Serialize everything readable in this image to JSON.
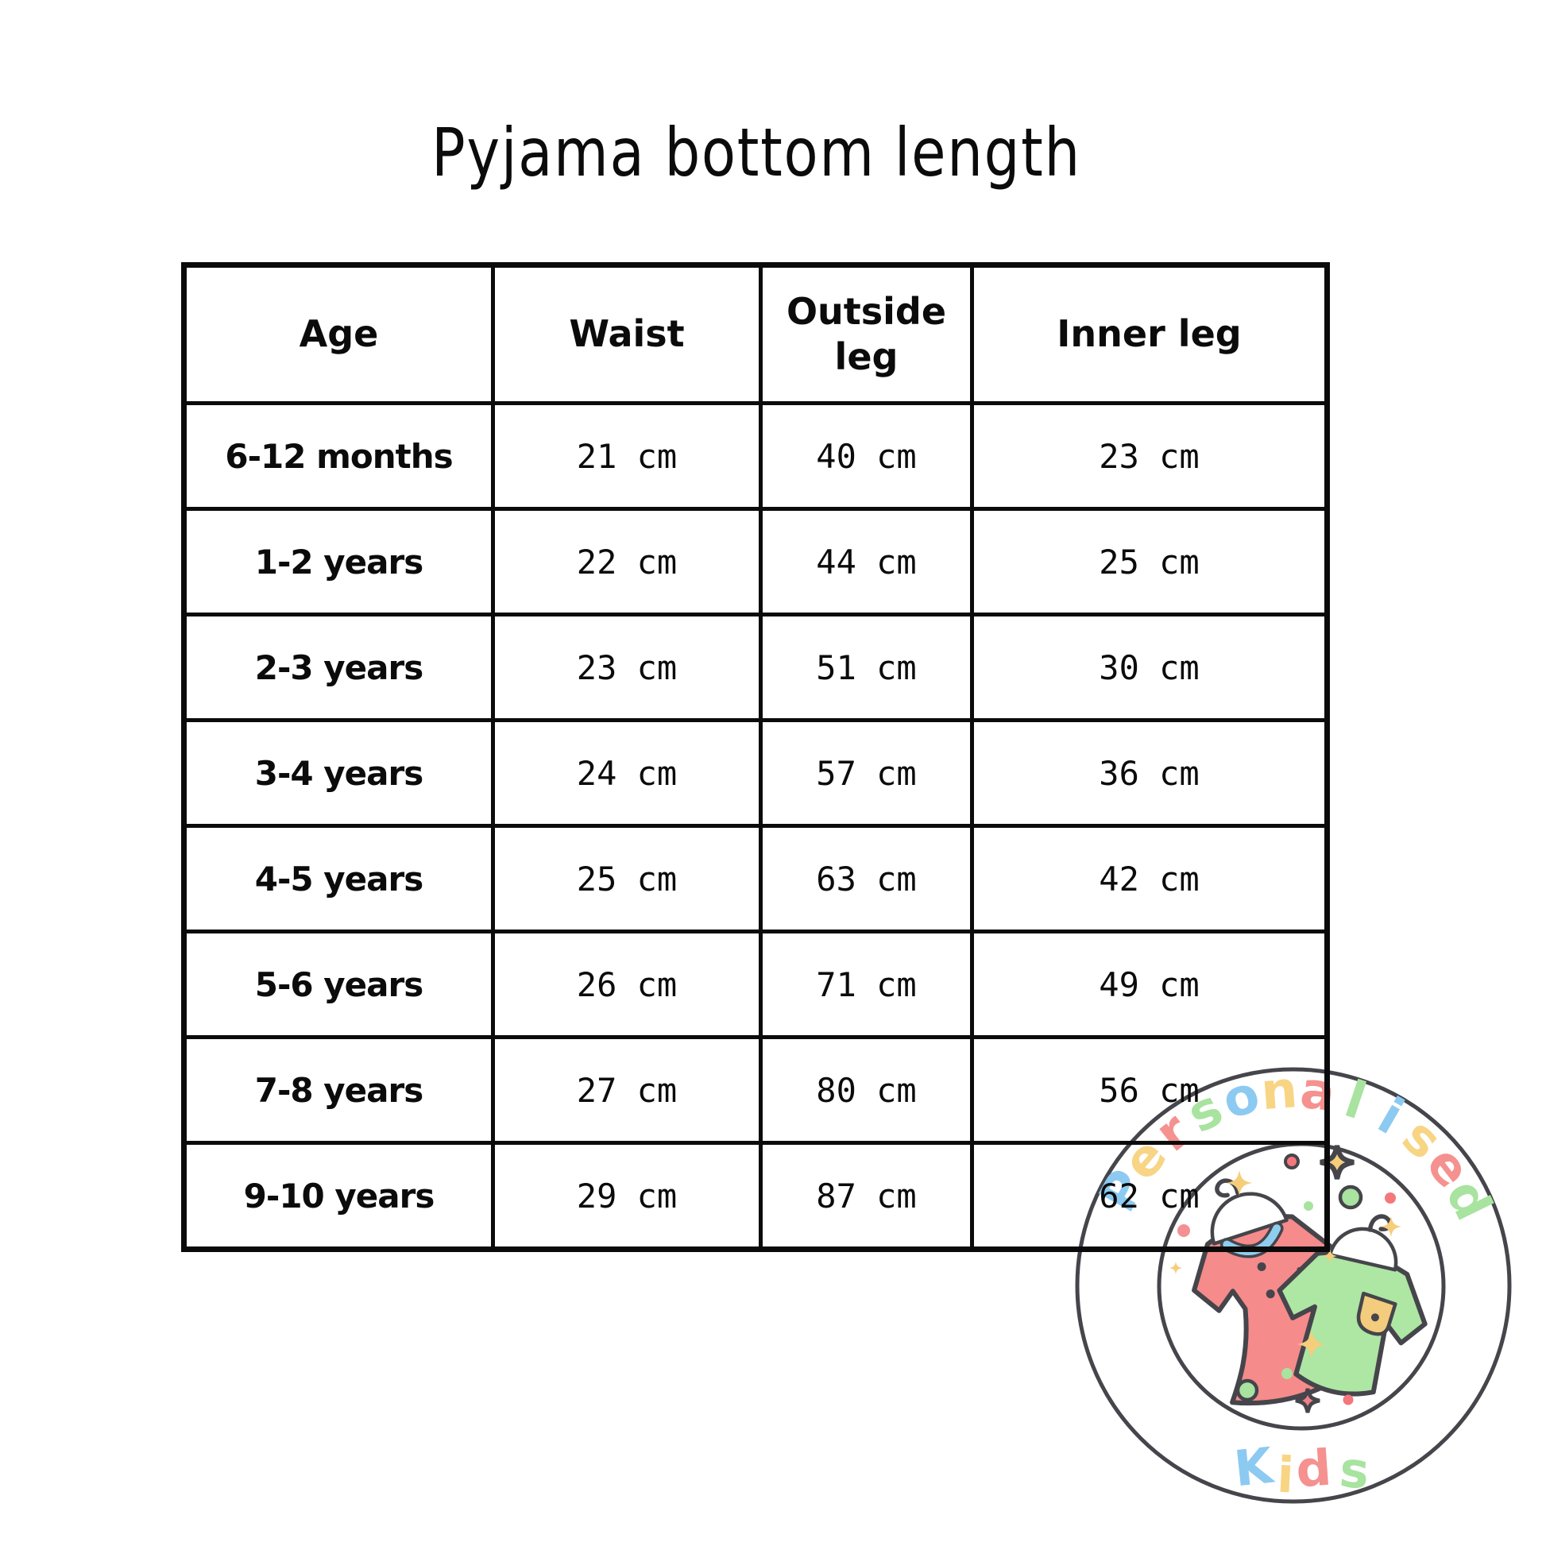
{
  "title": "Pyjama bottom length",
  "colors": {
    "text": "#0b0b0b",
    "border": "#0b0b0b",
    "background": "#ffffff"
  },
  "table": {
    "columns": [
      "Age",
      "Waist",
      "Outside leg",
      "Inner leg"
    ],
    "rows": [
      {
        "age": "6-12 months",
        "waist": "21 cm",
        "outside": "40 cm",
        "inner": "23 cm"
      },
      {
        "age": "1-2 years",
        "waist": "22 cm",
        "outside": "44 cm",
        "inner": "25 cm"
      },
      {
        "age": "2-3 years",
        "waist": "23 cm",
        "outside": "51 cm",
        "inner": "30 cm"
      },
      {
        "age": "3-4 years",
        "waist": "24 cm",
        "outside": "57 cm",
        "inner": "36 cm"
      },
      {
        "age": "4-5 years",
        "waist": "25 cm",
        "outside": "63 cm",
        "inner": "42 cm"
      },
      {
        "age": "5-6 years",
        "waist": "26 cm",
        "outside": "71 cm",
        "inner": "49 cm"
      },
      {
        "age": "7-8 years",
        "waist": "27 cm",
        "outside": "80 cm",
        "inner": "56 cm"
      },
      {
        "age": "9-10 years",
        "waist": "29 cm",
        "outside": "87 cm",
        "inner": "62 cm"
      }
    ]
  },
  "watermark": {
    "arc_text": "Personalised",
    "bottom_text": "Kids",
    "letter_colors": [
      "#8ccaf2",
      "#f8d584",
      "#f5918f",
      "#a8e3a0"
    ],
    "colors": {
      "outline": "#45454b",
      "dress": "#f58b8b",
      "collar": "#8fcdee",
      "shirt": "#aee6a4",
      "pocket": "#f3cc7d",
      "sparkle": "#f6cd7b",
      "dot_red": "#f4777c",
      "dot_green": "#a8e3a0",
      "dot_pink": "#f49092",
      "star_pink": "#f08088"
    }
  }
}
